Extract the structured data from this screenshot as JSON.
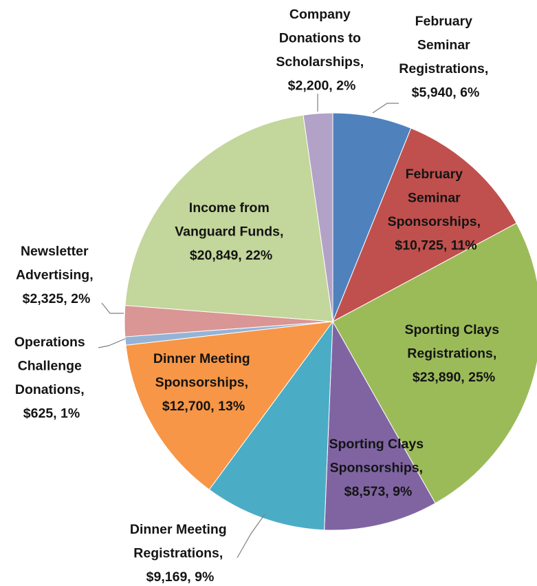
{
  "chart_data": {
    "type": "pie",
    "values": [
      5940,
      10725,
      23890,
      8573,
      9169,
      12700,
      625,
      2325,
      20849,
      2200
    ],
    "value_labels": [
      "February Seminar Registrations, $5,940, 6%",
      "February Seminar Sponsorships, $10,725, 11%",
      "Sporting Clays Registrations, $23,890, 25%",
      "Sporting Clays Sponsorships, $8,573, 9%",
      "Dinner Meeting Registrations, $9,169, 9%",
      "Dinner Meeting Sponsorships, $12,700, 13%",
      "Operations Challenge Donations, $625, 1%",
      "Newsletter Advertising, $2,325, 2%",
      "Income from Vanguard Funds, $20,849, 22%",
      "Company Donations to Scholarships, $2,200, 2%"
    ],
    "colors": [
      "#4f81bd",
      "#c0504d",
      "#9bbb59",
      "#8064a2",
      "#4bacc6",
      "#f79646",
      "#95b3d7",
      "#d99694",
      "#c3d69b",
      "#b3a2c7"
    ]
  }
}
